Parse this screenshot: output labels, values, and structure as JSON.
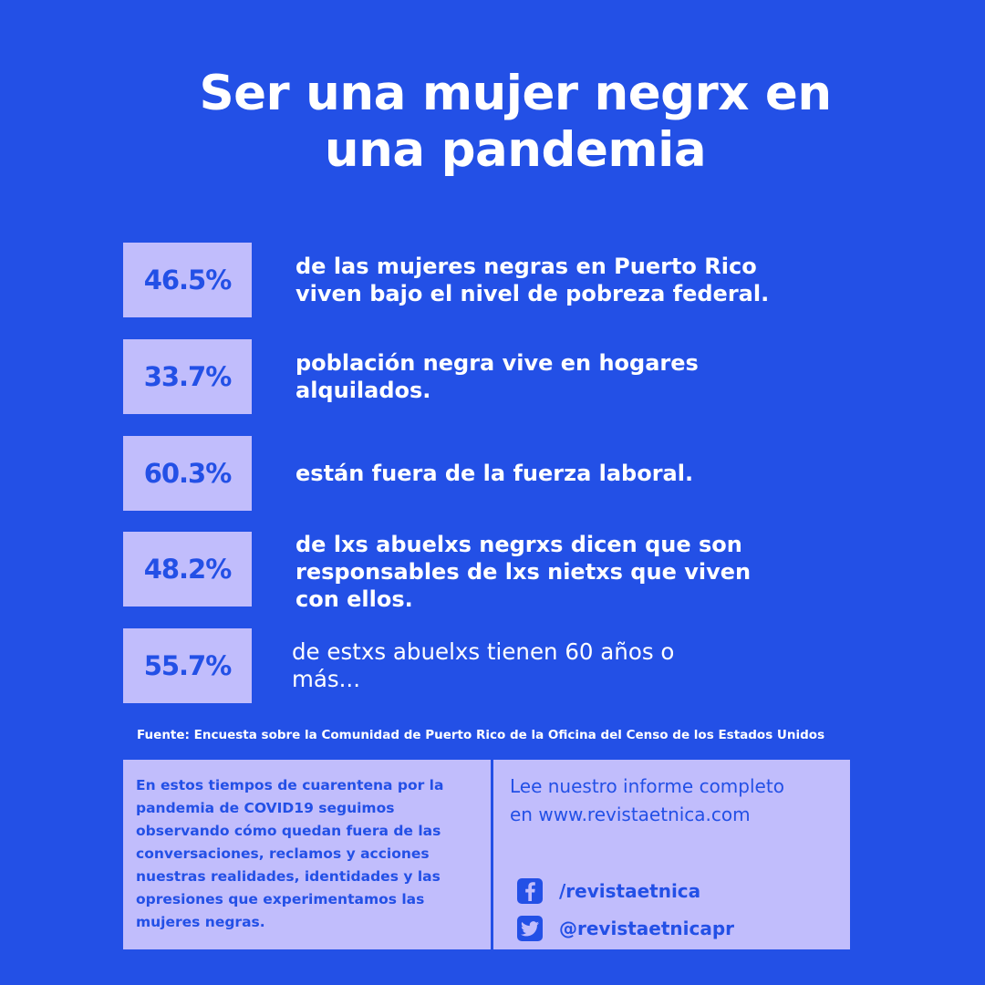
{
  "title": {
    "line1": "Ser una mujer negrx en",
    "line2": "una pandemia"
  },
  "stats": [
    {
      "value": "46.5%",
      "lines": [
        "de las mujeres negras en Puerto Rico",
        "viven bajo el nivel de pobreza federal."
      ]
    },
    {
      "value": "33.7%",
      "lines": [
        "población negra vive en hogares",
        "alquilados."
      ]
    },
    {
      "value": "60.3%",
      "lines": [
        "están fuera de la fuerza laboral."
      ]
    },
    {
      "value": "48.2%",
      "lines": [
        "de lxs abuelxs negrxs dicen que son",
        "responsables de lxs nietxs que viven",
        "con ellos."
      ]
    },
    {
      "value": "55.7%",
      "lines": [
        "de estxs abuelxs tienen 60 años o",
        "más..."
      ]
    }
  ],
  "source": "Fuente: Encuesta sobre la Comunidad de Puerto Rico de la Oficina del Censo de los Estados Unidos",
  "info_panel": {
    "lines": [
      "En estos tiempos de cuarentena por la",
      "pandemia de COVID19 seguimos",
      "observando cómo quedan fuera de las",
      "conversaciones, reclamos y acciones",
      "nuestras realidades, identidades y las",
      "opresiones que experimentamos las",
      "mujeres negras."
    ]
  },
  "contact_panel": {
    "read_more_line1": "Lee nuestro informe completo",
    "read_more_line2": "en www.revistaetnica.com",
    "facebook": {
      "icon": "facebook-icon",
      "handle": "/revistaetnica"
    },
    "twitter": {
      "icon": "twitter-icon",
      "handle": "@revistaetnicapr"
    }
  },
  "colors": {
    "background": "#2350e6",
    "box": "#c1bdfc",
    "text_light": "#ffffff",
    "text_accent": "#2350e6"
  }
}
